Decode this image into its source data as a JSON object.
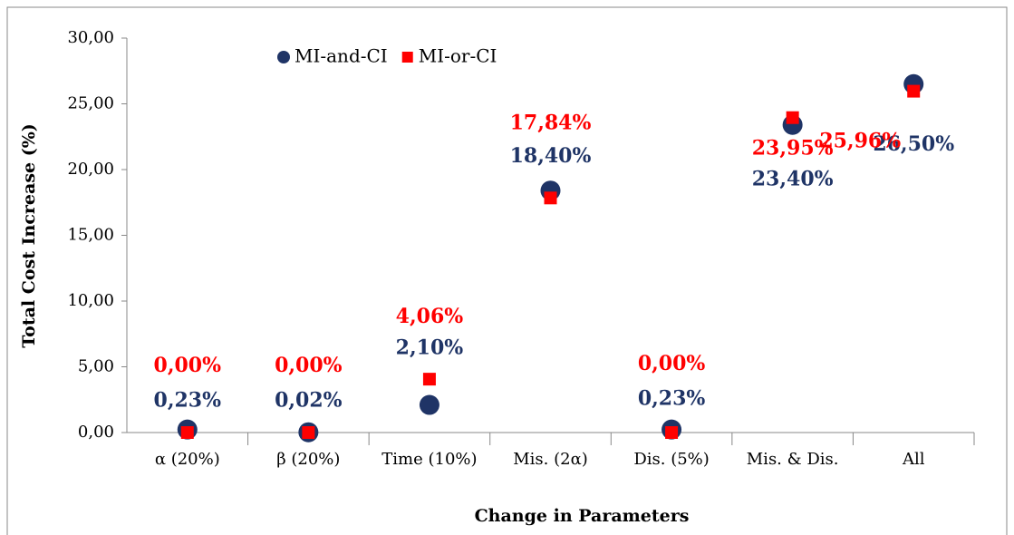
{
  "chart_data": {
    "type": "scatter",
    "x_label": "Change in Parameters",
    "y_label": "Total Cost Increase (%)",
    "categories": [
      "α (20%)",
      "β (20%)",
      "Time (10%)",
      "Mis. (2α)",
      "Dis. (5%)",
      "Mis. & Dis.",
      "All"
    ],
    "series": [
      {
        "name": "MI-and-CI",
        "color": "#1f3466",
        "marker": "circle",
        "values": [
          0.23,
          0.02,
          2.1,
          18.4,
          0.23,
          23.4,
          26.5
        ],
        "value_labels": [
          "0,23%",
          "0,02%",
          "2,10%",
          "18,40%",
          "0,23%",
          "23,40%",
          "26,50%"
        ]
      },
      {
        "name": "MI-or-CI",
        "color": "#ff0000",
        "marker": "square",
        "values": [
          0,
          0,
          4.06,
          17.84,
          0,
          23.95,
          25.96
        ],
        "value_labels": [
          "0,00%",
          "0,00%",
          "4,06%",
          "17,84%",
          "0,00%",
          "23,95%",
          "25,96%"
        ]
      }
    ],
    "ylim": [
      0,
      30
    ],
    "yticks": [
      {
        "value": 0,
        "label": "0,00"
      },
      {
        "value": 5,
        "label": "5,00"
      },
      {
        "value": 10,
        "label": "10,00"
      },
      {
        "value": 15,
        "label": "15,00"
      },
      {
        "value": 20,
        "label": "20,00"
      },
      {
        "value": 25,
        "label": "25,00"
      },
      {
        "value": 30,
        "label": "30,00"
      }
    ],
    "legend": "top"
  }
}
